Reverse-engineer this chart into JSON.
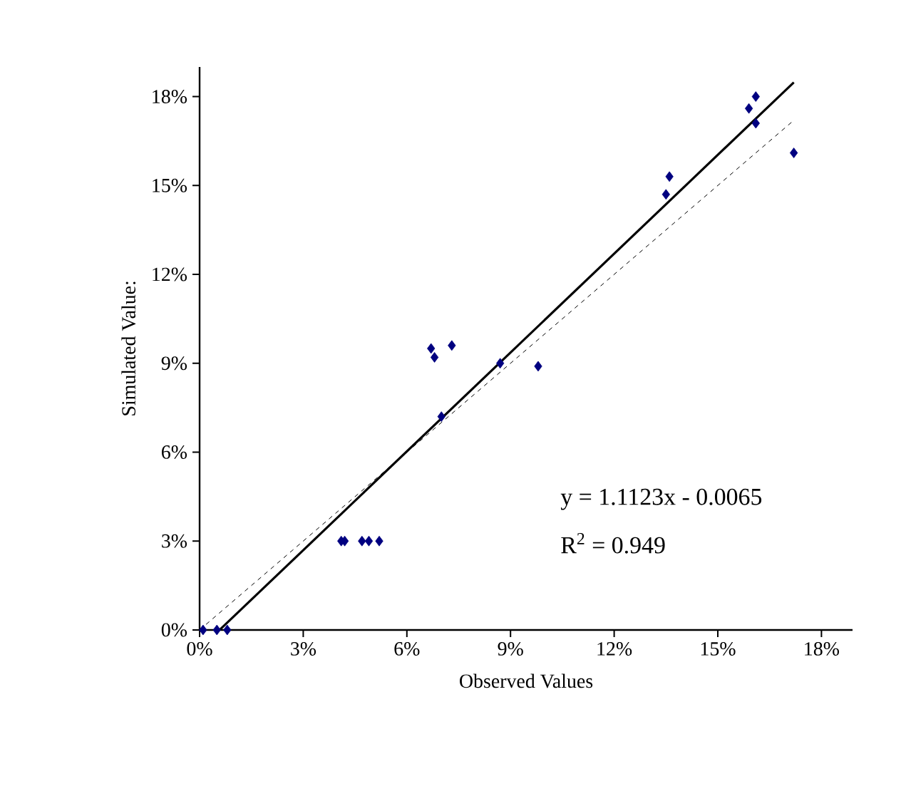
{
  "chart_data": {
    "type": "scatter",
    "xlabel": "Observed Values",
    "ylabel": "Simulated Value:",
    "xlim": [
      0,
      18.9
    ],
    "ylim": [
      0,
      19
    ],
    "xticks": [
      {
        "value": 0,
        "label": "0%"
      },
      {
        "value": 3,
        "label": "3%"
      },
      {
        "value": 6,
        "label": "6%"
      },
      {
        "value": 9,
        "label": "9%"
      },
      {
        "value": 12,
        "label": "12%"
      },
      {
        "value": 15,
        "label": "15%"
      },
      {
        "value": 18,
        "label": "18%"
      }
    ],
    "yticks": [
      {
        "value": 0,
        "label": "0%"
      },
      {
        "value": 3,
        "label": "3%"
      },
      {
        "value": 6,
        "label": "6%"
      },
      {
        "value": 9,
        "label": "9%"
      },
      {
        "value": 12,
        "label": "12%"
      },
      {
        "value": 15,
        "label": "15%"
      },
      {
        "value": 18,
        "label": "18%"
      }
    ],
    "grid": false,
    "series": [
      {
        "color": "#000080",
        "marker": "diamond",
        "x": [
          0.1,
          0.5,
          0.8,
          4.1,
          4.2,
          4.7,
          4.9,
          5.2,
          6.7,
          6.8,
          7.3,
          7.0,
          8.7,
          9.8,
          13.5,
          13.6,
          15.9,
          16.1,
          16.1,
          17.2
        ],
        "values": [
          0,
          0,
          0,
          3.0,
          3.0,
          3.0,
          3.0,
          3.0,
          9.5,
          9.2,
          9.6,
          7.2,
          9.0,
          8.9,
          14.7,
          15.3,
          17.6,
          18.0,
          17.1,
          16.1
        ]
      },
      {
        "type": "line",
        "color": "#000000",
        "marker": "none",
        "line_style": "solid",
        "x": [
          0.58,
          17.2
        ],
        "values": [
          0,
          18.48
        ]
      },
      {
        "type": "line",
        "color": "#000000",
        "marker": "none",
        "line_style": "dashed",
        "x": [
          0,
          17.2
        ],
        "values": [
          0,
          17.2
        ]
      }
    ],
    "annotations": [
      "y = 1.1123x - 0.0065",
      "R$^{2}$ = 0.949"
    ]
  }
}
